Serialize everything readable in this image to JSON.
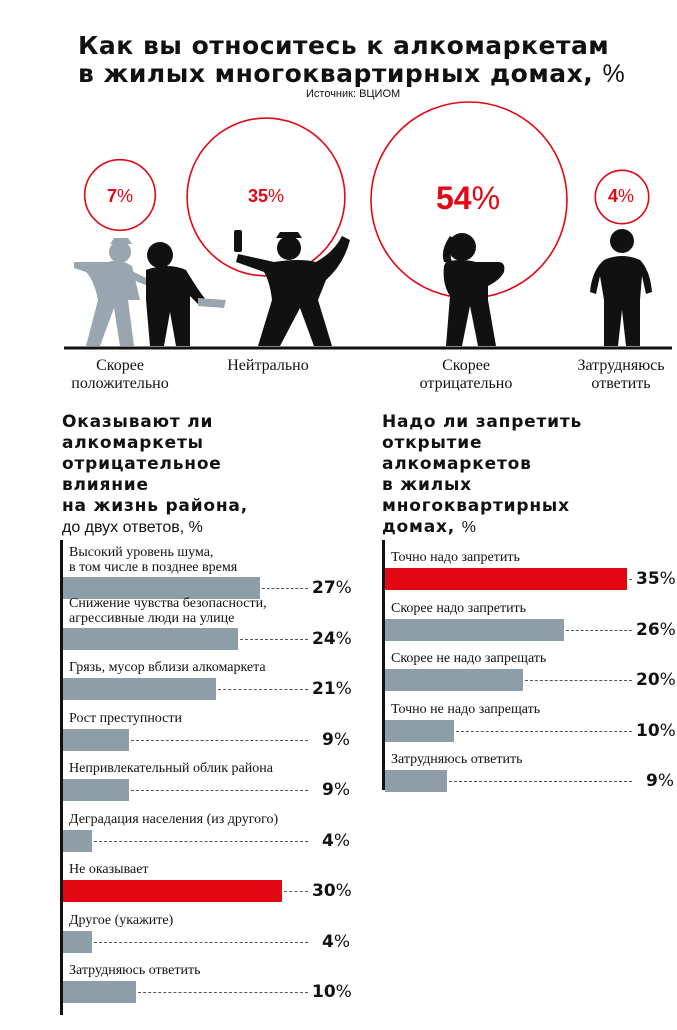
{
  "header": {
    "title_line1": "Как вы относитесь к алкомаркетам",
    "title_line2": "в жилых многоквартирных домах,",
    "title_unit": "%",
    "source": "Источник: ВЦИОМ"
  },
  "colors": {
    "accent": "#e30613",
    "bar": "#8e9ea9",
    "figure_dark": "#111111",
    "figure_light": "#9aa6af"
  },
  "attitude": {
    "items": [
      {
        "label_1": "Скорее",
        "label_2": "положительно",
        "value": 7,
        "pct_text": "7",
        "icon": "happy-person-icon"
      },
      {
        "label_1": "Нейтрально",
        "label_2": "",
        "value": 35,
        "pct_text": "35",
        "icon": "neutral-person-icon"
      },
      {
        "label_1": "Скорее",
        "label_2": "отрицательно",
        "value": 54,
        "pct_text": "54",
        "icon": "negative-person-icon"
      },
      {
        "label_1": "Затрудняюсь",
        "label_2": "ответить",
        "value": 4,
        "pct_text": "4",
        "icon": "undecided-person-icon"
      }
    ],
    "pct_sign": "%"
  },
  "influence": {
    "title_lines": [
      "Оказывают ли",
      "алкомаркеты",
      "отрицательное",
      "влияние",
      "на жизнь района,"
    ],
    "subtitle": "до двух ответов, %",
    "items": [
      {
        "label_1": "Высокий уровень шума,",
        "label_2": "в том числе в позднее время",
        "value": 27,
        "value_text": "27",
        "highlight": false
      },
      {
        "label_1": "Снижение чувства безопасности,",
        "label_2": "агрессивные люди на улице",
        "value": 24,
        "value_text": "24",
        "highlight": false
      },
      {
        "label_1": "Грязь, мусор вблизи алкомаркета",
        "label_2": "",
        "value": 21,
        "value_text": "21",
        "highlight": false
      },
      {
        "label_1": "Рост преступности",
        "label_2": "",
        "value": 9,
        "value_text": "9",
        "highlight": false
      },
      {
        "label_1": "Непривлекательный облик района",
        "label_2": "",
        "value": 9,
        "value_text": "9",
        "highlight": false
      },
      {
        "label_1": "Деградация населения (из другого)",
        "label_2": "",
        "value": 4,
        "value_text": "4",
        "highlight": false
      },
      {
        "label_1": "Не оказывает",
        "label_2": "",
        "value": 30,
        "value_text": "30",
        "highlight": true
      },
      {
        "label_1": "Другое (укажите)",
        "label_2": "",
        "value": 4,
        "value_text": "4",
        "highlight": false
      },
      {
        "label_1": "Затрудняюсь ответить",
        "label_2": "",
        "value": 10,
        "value_text": "10",
        "highlight": false
      }
    ],
    "pct_sign": "%"
  },
  "ban": {
    "title_lines": [
      "Надо ли запретить",
      "открытие",
      "алкомаркетов",
      "в жилых",
      "многоквартирных",
      "домах,"
    ],
    "title_unit": "%",
    "items": [
      {
        "label": "Точно надо запретить",
        "value": 35,
        "value_text": "35",
        "highlight": true
      },
      {
        "label": "Скорее надо запретить",
        "value": 26,
        "value_text": "26",
        "highlight": false
      },
      {
        "label": "Скорее не надо запрещать",
        "value": 20,
        "value_text": "20",
        "highlight": false
      },
      {
        "label": "Точно не надо запрещать",
        "value": 10,
        "value_text": "10",
        "highlight": false
      },
      {
        "label": "Затрудняюсь ответить",
        "label_2": "",
        "value": 9,
        "value_text": "9",
        "highlight": false
      }
    ],
    "pct_sign": "%"
  },
  "chart_data": [
    {
      "type": "bubble",
      "title": "Как вы относитесь к алкомаркетам в жилых многоквартирных домах, %",
      "categories": [
        "Скорее положительно",
        "Нейтрально",
        "Скорее отрицательно",
        "Затрудняюсь ответить"
      ],
      "values": [
        7,
        35,
        54,
        4
      ]
    },
    {
      "type": "bar",
      "title": "Оказывают ли алкомаркеты отрицательное влияние на жизнь района, до двух ответов, %",
      "categories": [
        "Высокий уровень шума, в том числе в позднее время",
        "Снижение чувства безопасности, агрессивные люди на улице",
        "Грязь, мусор вблизи алкомаркета",
        "Рост преступности",
        "Непривлекательный облик района",
        "Деградация населения (из другого)",
        "Не оказывает",
        "Другое (укажите)",
        "Затрудняюсь ответить"
      ],
      "values": [
        27,
        24,
        21,
        9,
        9,
        4,
        30,
        4,
        10
      ]
    },
    {
      "type": "bar",
      "title": "Надо ли запретить открытие алкомаркетов в жилых многоквартирных домах, %",
      "categories": [
        "Точно надо запретить",
        "Скорее надо запретить",
        "Скорее не надо запрещать",
        "Точно не надо запрещать",
        "Затрудняюсь ответить"
      ],
      "values": [
        35,
        26,
        20,
        10,
        9
      ]
    }
  ]
}
